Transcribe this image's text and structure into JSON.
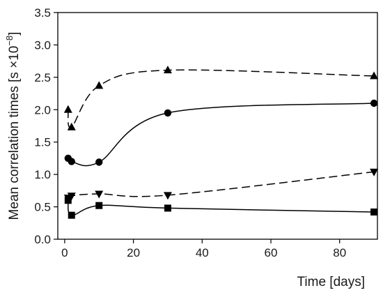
{
  "chart_data": {
    "type": "line",
    "xlabel": "Time [days]",
    "ylabel_main": "Mean correlation times [s ×10",
    "ylabel_exp": "−8",
    "ylabel_close": "]",
    "xlim": [
      -2,
      91
    ],
    "ylim": [
      0,
      3.5
    ],
    "x_ticks": [
      0,
      20,
      40,
      60,
      80
    ],
    "y_ticks": [
      0.0,
      0.5,
      1.0,
      1.5,
      2.0,
      2.5,
      3.0,
      3.5
    ],
    "y_tick_labels": [
      "0.0",
      "0.5",
      "1.0",
      "1.5",
      "2.0",
      "2.5",
      "3.0",
      "3.5"
    ],
    "grid": false,
    "legend": "none",
    "series": [
      {
        "marker": "triangle-up",
        "line_style": "dashed",
        "x": [
          1,
          2,
          10,
          30,
          90
        ],
        "y": [
          2.0,
          1.73,
          2.37,
          2.61,
          2.52
        ]
      },
      {
        "marker": "circle",
        "line_style": "solid",
        "x": [
          1,
          2,
          10,
          30,
          90
        ],
        "y": [
          1.25,
          1.2,
          1.19,
          1.95,
          2.1
        ]
      },
      {
        "marker": "triangle-down",
        "line_style": "dashed",
        "x": [
          1,
          2,
          10,
          30,
          90
        ],
        "y": [
          0.64,
          0.67,
          0.7,
          0.68,
          1.04
        ]
      },
      {
        "marker": "square",
        "line_style": "solid",
        "x": [
          1,
          2,
          10,
          30,
          90
        ],
        "y": [
          0.6,
          0.37,
          0.52,
          0.48,
          0.42
        ]
      }
    ]
  }
}
